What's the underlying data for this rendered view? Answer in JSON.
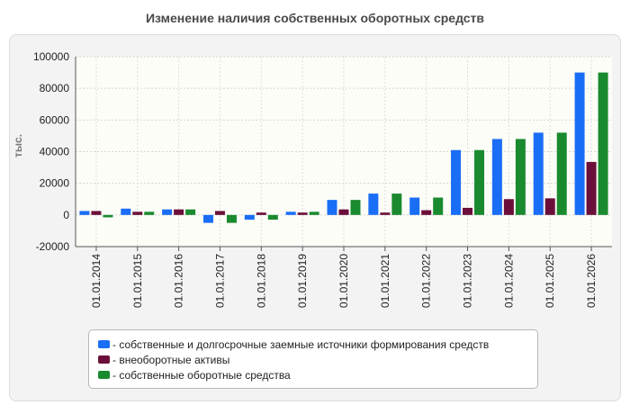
{
  "chart_data": {
    "type": "bar",
    "title": "Изменение наличия собственных оборотных средств",
    "xlabel": "",
    "ylabel": "тыс.",
    "ylim": [
      -20000,
      100000
    ],
    "yticks": [
      100000,
      80000,
      60000,
      40000,
      20000,
      0,
      -20000
    ],
    "grid": true,
    "legend_position": "bottom",
    "categories": [
      "01.01.2014",
      "01.01.2015",
      "01.01.2016",
      "01.01.2017",
      "01.01.2018",
      "01.01.2019",
      "01.01.2020",
      "01.01.2021",
      "01.01.2022",
      "01.01.2023",
      "01.01.2024",
      "01.01.2025",
      "01.01.2026"
    ],
    "series": [
      {
        "name": "- собственные и долгосрочные заемные источники формирования средств",
        "color": "#1a6ef5",
        "values": [
          2500,
          4000,
          3500,
          -5000,
          -3000,
          2000,
          9500,
          13500,
          11000,
          41000,
          48000,
          52000,
          90000
        ]
      },
      {
        "name": "- внеоборотные активы",
        "color": "#6b0f3a",
        "values": [
          2500,
          2000,
          3500,
          2500,
          1500,
          1500,
          3500,
          1500,
          3000,
          4500,
          10000,
          10500,
          33500
        ]
      },
      {
        "name": "- собственные оборотные средства",
        "color": "#1a8a2e",
        "values": [
          -1500,
          2000,
          3500,
          -5000,
          -3000,
          2000,
          9500,
          13500,
          11000,
          41000,
          48000,
          52000,
          90000
        ]
      }
    ]
  }
}
